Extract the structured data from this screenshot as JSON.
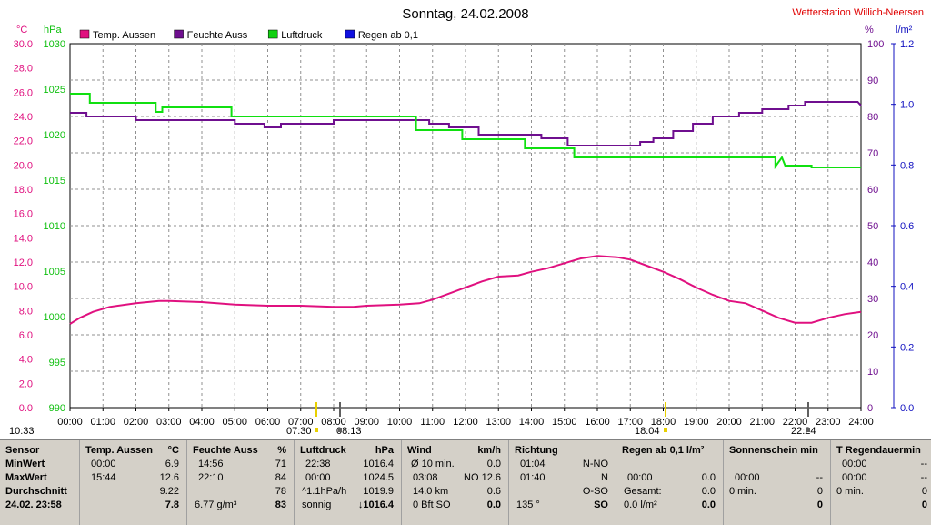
{
  "header": {
    "title": "Sonntag, 24.02.2008",
    "station": "Wetterstation Willich-Neersen"
  },
  "chart_data": {
    "type": "line",
    "title": "Sonntag, 24.02.2008",
    "x_ticks": [
      "00:00",
      "01:00",
      "02:00",
      "03:00",
      "04:00",
      "05:00",
      "06:00",
      "07:00",
      "08:00",
      "09:00",
      "10:00",
      "11:00",
      "12:00",
      "13:00",
      "14:00",
      "15:00",
      "16:00",
      "17:00",
      "18:00",
      "19:00",
      "20:00",
      "21:00",
      "22:00",
      "23:00",
      "24:00"
    ],
    "xlim": [
      0,
      24
    ],
    "axes": {
      "temp": {
        "unit": "°C",
        "ylim": [
          0,
          30
        ],
        "ticks": [
          "0.0",
          "2.0",
          "4.0",
          "6.0",
          "8.0",
          "10.0",
          "12.0",
          "14.0",
          "16.0",
          "18.0",
          "20.0",
          "22.0",
          "24.0",
          "26.0",
          "28.0",
          "30.0"
        ],
        "color": "#e0107f"
      },
      "pressure": {
        "unit": "hPa",
        "ylim": [
          990,
          1030
        ],
        "ticks": [
          "990",
          "995",
          "1000",
          "1005",
          "1010",
          "1015",
          "1020",
          "1025",
          "1030"
        ],
        "color": "#10c010"
      },
      "humidity": {
        "unit": "%",
        "ylim": [
          0,
          100
        ],
        "ticks": [
          "0",
          "10",
          "20",
          "30",
          "40",
          "50",
          "60",
          "70",
          "80",
          "90",
          "100"
        ],
        "color": "#6f0f8f"
      },
      "rain": {
        "unit": "l/m²",
        "ylim": [
          0,
          1.2
        ],
        "ticks": [
          "0.0",
          "0.2",
          "0.4",
          "0.6",
          "0.8",
          "1.0",
          "1.2"
        ],
        "color": "#1010c0"
      }
    },
    "legend": [
      {
        "name": "Temp. Aussen",
        "color": "#e0107f"
      },
      {
        "name": "Feuchte Auss",
        "color": "#6f0f8f"
      },
      {
        "name": "Luftdruck",
        "color": "#10d010"
      },
      {
        "name": "Regen ab 0,1",
        "color": "#1010e0"
      }
    ],
    "series": [
      {
        "name": "Temp. Aussen",
        "axis": "temp",
        "color": "#e0107f",
        "points": [
          [
            0,
            6.9
          ],
          [
            0.3,
            7.4
          ],
          [
            0.7,
            7.9
          ],
          [
            1.2,
            8.3
          ],
          [
            2,
            8.6
          ],
          [
            2.7,
            8.8
          ],
          [
            3,
            8.8
          ],
          [
            4,
            8.7
          ],
          [
            5,
            8.5
          ],
          [
            6,
            8.4
          ],
          [
            7,
            8.4
          ],
          [
            8,
            8.3
          ],
          [
            8.6,
            8.3
          ],
          [
            9,
            8.4
          ],
          [
            10,
            8.5
          ],
          [
            10.6,
            8.6
          ],
          [
            11,
            8.9
          ],
          [
            11.5,
            9.4
          ],
          [
            12,
            9.9
          ],
          [
            12.5,
            10.4
          ],
          [
            13,
            10.8
          ],
          [
            13.6,
            10.9
          ],
          [
            14,
            11.2
          ],
          [
            14.5,
            11.5
          ],
          [
            15,
            11.9
          ],
          [
            15.5,
            12.3
          ],
          [
            16,
            12.5
          ],
          [
            16.6,
            12.4
          ],
          [
            17,
            12.2
          ],
          [
            17.5,
            11.7
          ],
          [
            18,
            11.2
          ],
          [
            18.5,
            10.6
          ],
          [
            19,
            9.9
          ],
          [
            19.5,
            9.3
          ],
          [
            20,
            8.8
          ],
          [
            20.5,
            8.6
          ],
          [
            21,
            8.0
          ],
          [
            21.5,
            7.4
          ],
          [
            22,
            7.0
          ],
          [
            22.5,
            7.0
          ],
          [
            23,
            7.4
          ],
          [
            23.5,
            7.7
          ],
          [
            24,
            7.9
          ]
        ]
      },
      {
        "name": "Feuchte Auss",
        "axis": "humidity",
        "color": "#6f0f8f",
        "points": [
          [
            0,
            81
          ],
          [
            0.5,
            81
          ],
          [
            0.5,
            80
          ],
          [
            2,
            80
          ],
          [
            2,
            79
          ],
          [
            5,
            79
          ],
          [
            5,
            78
          ],
          [
            5.9,
            78
          ],
          [
            5.9,
            77
          ],
          [
            6.4,
            77
          ],
          [
            6.4,
            78
          ],
          [
            8,
            78
          ],
          [
            8,
            79
          ],
          [
            10.9,
            79
          ],
          [
            10.9,
            78
          ],
          [
            11.5,
            78
          ],
          [
            11.5,
            77
          ],
          [
            12.4,
            77
          ],
          [
            12.4,
            75
          ],
          [
            14.3,
            75
          ],
          [
            14.3,
            74
          ],
          [
            15.1,
            74
          ],
          [
            15.1,
            72
          ],
          [
            17.3,
            72
          ],
          [
            17.3,
            73
          ],
          [
            17.7,
            73
          ],
          [
            17.7,
            74
          ],
          [
            18.3,
            74
          ],
          [
            18.3,
            76
          ],
          [
            18.9,
            76
          ],
          [
            18.9,
            78
          ],
          [
            19.5,
            78
          ],
          [
            19.5,
            80
          ],
          [
            20.3,
            80
          ],
          [
            20.3,
            81
          ],
          [
            21,
            81
          ],
          [
            21,
            82
          ],
          [
            21.8,
            82
          ],
          [
            21.8,
            83
          ],
          [
            22.3,
            83
          ],
          [
            22.3,
            84
          ],
          [
            23.9,
            84
          ],
          [
            24,
            83
          ]
        ]
      },
      {
        "name": "Luftdruck",
        "axis": "pressure",
        "color": "#10e010",
        "points": [
          [
            0,
            1024.5
          ],
          [
            0.6,
            1024.5
          ],
          [
            0.6,
            1023.5
          ],
          [
            2.6,
            1023.5
          ],
          [
            2.6,
            1022.5
          ],
          [
            2.8,
            1022.5
          ],
          [
            2.8,
            1023
          ],
          [
            4.9,
            1023
          ],
          [
            4.9,
            1022
          ],
          [
            10.5,
            1022
          ],
          [
            10.5,
            1020.5
          ],
          [
            11.9,
            1020.5
          ],
          [
            11.9,
            1019.5
          ],
          [
            13.8,
            1019.5
          ],
          [
            13.8,
            1018.5
          ],
          [
            15.3,
            1018.5
          ],
          [
            15.3,
            1017.5
          ],
          [
            21.4,
            1017.5
          ],
          [
            21.4,
            1016.5
          ],
          [
            21.6,
            1017.5
          ],
          [
            21.7,
            1016.6
          ],
          [
            22.5,
            1016.6
          ],
          [
            22.5,
            1016.4
          ],
          [
            24,
            1016.4
          ]
        ]
      }
    ],
    "below_axis_labels": [
      "10:33",
      "07:30",
      "08:13",
      "18:04",
      "22:24"
    ],
    "grid": true
  },
  "table": {
    "sensor": {
      "header": "Sensor",
      "rows": [
        "MinWert",
        "MaxWert",
        "Durchschnitt",
        "24.02. 23:58"
      ]
    },
    "temp": {
      "header": "Temp. Aussen",
      "unit": "°C",
      "rows": [
        [
          "00:00",
          "6.9"
        ],
        [
          "15:44",
          "12.6"
        ],
        [
          "",
          "9.22"
        ],
        [
          "",
          "7.8"
        ]
      ]
    },
    "feuchte": {
      "header": "Feuchte Auss",
      "unit": "%",
      "rows": [
        [
          "14:56",
          "71"
        ],
        [
          "22:10",
          "84"
        ],
        [
          "",
          "78"
        ],
        [
          "6.77 g/m³",
          "83"
        ]
      ]
    },
    "luftdruck": {
      "header": "Luftdruck",
      "unit": "hPa",
      "rows": [
        [
          "22:38",
          "1016.4"
        ],
        [
          "00:00",
          "1024.5"
        ],
        [
          "^1.1hPa/h",
          "1019.9"
        ],
        [
          "sonnig",
          "↓1016.4"
        ]
      ]
    },
    "wind": {
      "header": "Wind",
      "unit": "km/h",
      "rows": [
        [
          "Ø 10 min.",
          "0.0"
        ],
        [
          "03:08",
          "NO 12.6"
        ],
        [
          "14.0 km",
          "0.6"
        ],
        [
          "0 Bft SO",
          "0.0"
        ]
      ]
    },
    "richtung": {
      "header": "Richtung",
      "rows": [
        [
          "01:04",
          "N-NO"
        ],
        [
          "01:40",
          "N"
        ],
        [
          "",
          "O-SO"
        ],
        [
          "135 °",
          "SO"
        ]
      ]
    },
    "regen": {
      "header": "Regen ab 0,1 l/m²",
      "rows": [
        [
          "",
          ""
        ],
        [
          "00:00",
          "0.0"
        ],
        [
          "Gesamt:",
          "0.0"
        ],
        [
          "0.0 l/m²",
          "0.0"
        ]
      ]
    },
    "sonne": {
      "header": "Sonnenschein min",
      "rows": [
        [
          "",
          ""
        ],
        [
          "00:00",
          "--"
        ],
        [
          "0 min.",
          "0"
        ],
        [
          "",
          "0"
        ]
      ]
    },
    "regendauer": {
      "header": "T Regendauermin",
      "rows": [
        [
          "00:00",
          "--"
        ],
        [
          "00:00",
          "--"
        ],
        [
          "0 min.",
          "0"
        ],
        [
          "",
          "0"
        ]
      ]
    }
  }
}
